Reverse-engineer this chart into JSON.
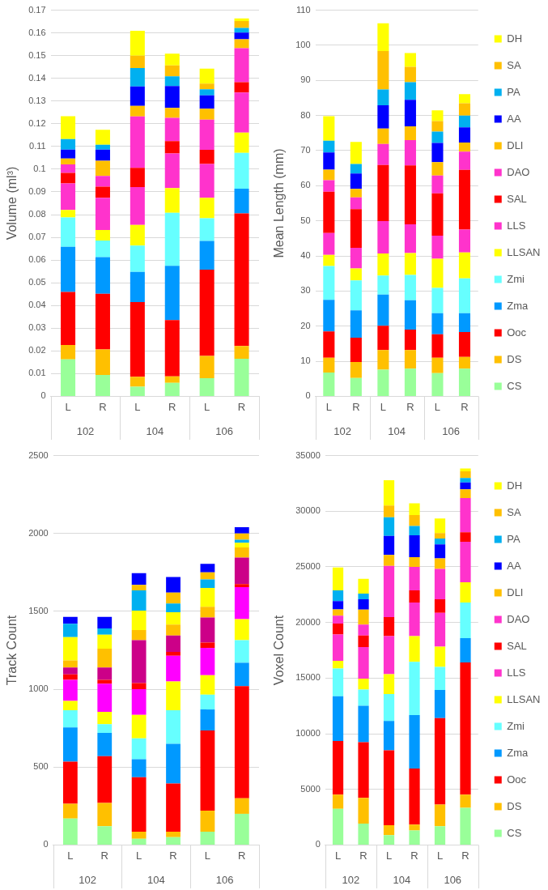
{
  "chart_data": [
    {
      "type": "bar",
      "stacked": true,
      "ylabel": "Volume (ml³)",
      "categories": [
        "L",
        "R",
        "L",
        "R",
        "L",
        "R"
      ],
      "annotations": [
        "102",
        "104",
        "106"
      ],
      "ylim": [
        0,
        0.17
      ],
      "yticks": [
        0,
        0.01,
        0.02,
        0.03,
        0.04,
        0.05,
        0.06,
        0.07,
        0.08,
        0.09,
        0.1,
        0.11,
        0.12,
        0.13,
        0.14,
        0.15,
        0.16,
        0.17
      ],
      "grid": "y",
      "legend": false,
      "series": [
        {
          "color": "#99ff99",
          "values": [
            0.0163,
            0.0094,
            0.0042,
            0.0059,
            0.008,
            0.0165
          ]
        },
        {
          "color": "#ffc000",
          "values": [
            0.0063,
            0.0112,
            0.0044,
            0.0029,
            0.0098,
            0.0057
          ]
        },
        {
          "color": "#ff0000",
          "values": [
            0.0234,
            0.0246,
            0.0329,
            0.0248,
            0.038,
            0.0583
          ]
        },
        {
          "color": "#0099ff",
          "values": [
            0.0198,
            0.0161,
            0.0133,
            0.0239,
            0.0126,
            0.0109
          ]
        },
        {
          "color": "#66ffff",
          "values": [
            0.013,
            0.0073,
            0.0116,
            0.0233,
            0.01,
            0.0158
          ]
        },
        {
          "color": "#ffff00",
          "values": [
            0.0033,
            0.0046,
            0.0091,
            0.0109,
            0.009,
            0.0089
          ]
        },
        {
          "color": "#ff33cc",
          "values": [
            0.0116,
            0.0142,
            0.0166,
            0.0152,
            0.0149,
            0.0177
          ]
        },
        {
          "color": "#ff0000",
          "values": [
            0.0047,
            0.0049,
            0.0085,
            0.0055,
            0.0062,
            0.0045
          ]
        },
        {
          "color": "#ff33cc",
          "values": [
            0.0037,
            0.0047,
            0.0226,
            0.0102,
            0.0133,
            0.015
          ]
        },
        {
          "color": "#ffc000",
          "values": [
            0.0026,
            0.0067,
            0.0047,
            0.0044,
            0.0048,
            0.0039
          ]
        },
        {
          "color": "#0000ff",
          "values": [
            0.0039,
            0.0049,
            0.0085,
            0.0096,
            0.0059,
            0.0029
          ]
        },
        {
          "color": "#00b0f0",
          "values": [
            0.0047,
            0.0022,
            0.0081,
            0.0043,
            0.0027,
            0.0021
          ]
        },
        {
          "color": "#ffc000",
          "values": [
            0,
            0,
            0.0055,
            0.0048,
            0.0025,
            0.003
          ]
        },
        {
          "color": "#ffff00",
          "values": [
            0.01,
            0.0066,
            0.0109,
            0.0052,
            0.0066,
            0.0012
          ]
        }
      ]
    },
    {
      "type": "bar",
      "stacked": true,
      "ylabel": "Mean Length (mm)",
      "categories": [
        "L",
        "R",
        "L",
        "R",
        "L",
        "R"
      ],
      "annotations": [
        "102",
        "104",
        "106"
      ],
      "ylim": [
        0,
        110
      ],
      "yticks": [
        0,
        10,
        20,
        30,
        40,
        50,
        60,
        70,
        80,
        90,
        100,
        110
      ],
      "grid": "y",
      "legend": "right",
      "series": [
        {
          "name": "CS",
          "color": "#99ff99",
          "values": [
            6.8,
            5.2,
            7.6,
            7.9,
            6.6,
            7.9
          ]
        },
        {
          "name": "DS",
          "color": "#ffc000",
          "values": [
            4.2,
            4.6,
            5.6,
            5.3,
            4.4,
            3.3
          ]
        },
        {
          "name": "Ooc",
          "color": "#ff0000",
          "values": [
            7.5,
            6.9,
            6.9,
            5.8,
            6.7,
            7.1
          ]
        },
        {
          "name": "Zma",
          "color": "#0099ff",
          "values": [
            9.0,
            7.8,
            8.9,
            8.4,
            6.0,
            5.4
          ]
        },
        {
          "name": "Zmi",
          "color": "#66ffff",
          "values": [
            9.6,
            8.5,
            5.4,
            7.2,
            7.2,
            9.9
          ]
        },
        {
          "name": "LLSAN",
          "color": "#ffff00",
          "values": [
            3.2,
            3.4,
            6.3,
            6.2,
            8.3,
            7.4
          ]
        },
        {
          "name": "LLS",
          "color": "#ff33cc",
          "values": [
            6.2,
            5.9,
            9.2,
            8.2,
            6.6,
            6.5
          ]
        },
        {
          "name": "SAL",
          "color": "#ff0000",
          "values": [
            11.8,
            11.0,
            16.0,
            16.8,
            12.0,
            17.0
          ]
        },
        {
          "name": "DAO",
          "color": "#ff33cc",
          "values": [
            3.3,
            3.4,
            6.0,
            7.2,
            5.1,
            5.2
          ]
        },
        {
          "name": "DLI",
          "color": "#ffc000",
          "values": [
            3.0,
            2.4,
            4.4,
            3.9,
            3.8,
            2.6
          ]
        },
        {
          "name": "AA",
          "color": "#0000ff",
          "values": [
            4.9,
            4.4,
            6.6,
            7.6,
            5.5,
            4.3
          ]
        },
        {
          "name": "PA",
          "color": "#00b0f0",
          "values": [
            3.3,
            2.7,
            4.5,
            5.0,
            3.2,
            3.4
          ]
        },
        {
          "name": "SA",
          "color": "#ffc000",
          "values": [
            0,
            0,
            11.0,
            4.4,
            3.0,
            3.5
          ]
        },
        {
          "name": "DH",
          "color": "#ffff00",
          "values": [
            7.0,
            6.3,
            7.9,
            3.9,
            3.1,
            2.6
          ]
        }
      ]
    },
    {
      "type": "bar",
      "stacked": true,
      "ylabel": "Track Count",
      "categories": [
        "L",
        "R",
        "L",
        "R",
        "L",
        "R"
      ],
      "annotations": [
        "102",
        "104",
        "106"
      ],
      "ylim": [
        0,
        2500
      ],
      "yticks": [
        0,
        500,
        1000,
        1500,
        2000,
        2500
      ],
      "grid": "y",
      "legend": false,
      "series": [
        {
          "color": "#99ff99",
          "values": [
            170,
            120,
            40,
            50,
            85,
            200
          ]
        },
        {
          "color": "#ffc000",
          "values": [
            95,
            150,
            45,
            35,
            135,
            100
          ]
        },
        {
          "color": "#ff0000",
          "values": [
            270,
            300,
            350,
            310,
            515,
            720
          ]
        },
        {
          "color": "#0099ff",
          "values": [
            220,
            150,
            115,
            255,
            135,
            150
          ]
        },
        {
          "color": "#66ffff",
          "values": [
            110,
            55,
            135,
            215,
            95,
            145
          ]
        },
        {
          "color": "#ffff00",
          "values": [
            60,
            80,
            150,
            185,
            125,
            135
          ]
        },
        {
          "color": "#ff00ff",
          "values": [
            135,
            180,
            165,
            165,
            175,
            205
          ]
        },
        {
          "color": "#ff0000",
          "values": [
            35,
            25,
            40,
            25,
            35,
            20
          ]
        },
        {
          "color": "#cc0088",
          "values": [
            45,
            80,
            275,
            105,
            160,
            170
          ]
        },
        {
          "color": "#ffc000",
          "values": [
            45,
            120,
            65,
            70,
            70,
            65
          ]
        },
        {
          "color": "#ffff00",
          "values": [
            150,
            90,
            125,
            80,
            120,
            30
          ]
        },
        {
          "color": "#00b0f0",
          "values": [
            85,
            40,
            130,
            55,
            55,
            20
          ]
        },
        {
          "color": "#ffc000",
          "values": [
            0,
            0,
            35,
            70,
            45,
            40
          ]
        },
        {
          "color": "#0000ff",
          "values": [
            45,
            75,
            75,
            100,
            55,
            40
          ]
        }
      ]
    },
    {
      "type": "bar",
      "stacked": true,
      "ylabel": "Voxel Count",
      "categories": [
        "L",
        "R",
        "L",
        "R",
        "L",
        "R"
      ],
      "annotations": [
        "102",
        "104",
        "106"
      ],
      "ylim": [
        0,
        35000
      ],
      "yticks": [
        0,
        5000,
        10000,
        15000,
        20000,
        25000,
        30000,
        35000
      ],
      "grid": "y",
      "legend": "right",
      "series": [
        {
          "name": "CS",
          "color": "#99ff99",
          "values": [
            3250,
            1930,
            890,
            1300,
            1680,
            3350
          ]
        },
        {
          "name": "DS",
          "color": "#ffc000",
          "values": [
            1270,
            2310,
            890,
            530,
            1950,
            1170
          ]
        },
        {
          "name": "Ooc",
          "color": "#ff0000",
          "values": [
            4820,
            5000,
            6730,
            5050,
            7770,
            11880
          ]
        },
        {
          "name": "Zma",
          "color": "#0099ff",
          "values": [
            4020,
            3280,
            2640,
            4800,
            2540,
            2190
          ]
        },
        {
          "name": "Zmi",
          "color": "#66ffff",
          "values": [
            2510,
            1450,
            2410,
            4780,
            2060,
            3200
          ]
        },
        {
          "name": "LLSAN",
          "color": "#ffff00",
          "values": [
            690,
            990,
            1800,
            2310,
            1830,
            1820
          ]
        },
        {
          "name": "LLS",
          "color": "#ff33cc",
          "values": [
            2360,
            2840,
            3410,
            3020,
            3040,
            3640
          ]
        },
        {
          "name": "SAL",
          "color": "#ff0000",
          "values": [
            990,
            1020,
            1720,
            1090,
            1220,
            860
          ]
        },
        {
          "name": "DAO",
          "color": "#ff33cc",
          "values": [
            710,
            990,
            4600,
            2110,
            2720,
            3070
          ]
        },
        {
          "name": "DLI",
          "color": "#ffc000",
          "values": [
            560,
            1340,
            990,
            890,
            960,
            790
          ]
        },
        {
          "name": "AA",
          "color": "#0000ff",
          "values": [
            740,
            940,
            1700,
            1950,
            1250,
            610
          ]
        },
        {
          "name": "PA",
          "color": "#00b0f0",
          "values": [
            960,
            510,
            1680,
            840,
            530,
            400
          ]
        },
        {
          "name": "SA",
          "color": "#ffc000",
          "values": [
            0,
            0,
            1060,
            990,
            480,
            610
          ]
        },
        {
          "name": "DH",
          "color": "#ffff00",
          "values": [
            2060,
            1320,
            2260,
            1060,
            1320,
            260
          ]
        }
      ]
    }
  ]
}
